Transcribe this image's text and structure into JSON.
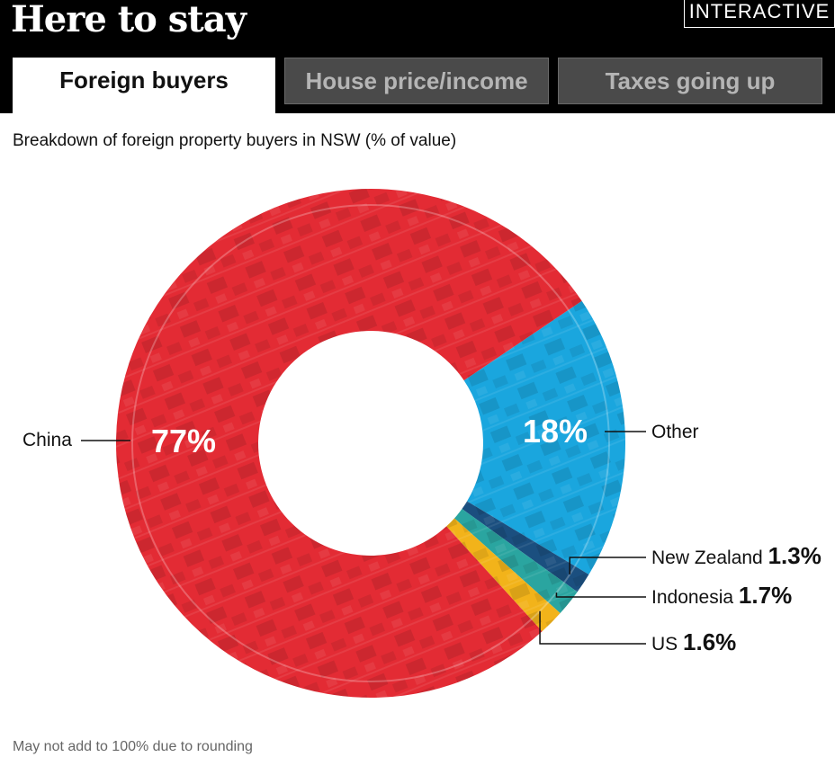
{
  "header": {
    "title": "Here to stay",
    "badge": "INTERACTIVE",
    "tabs": [
      {
        "label": "Foreign buyers",
        "active": true
      },
      {
        "label": "House price/income",
        "active": false
      },
      {
        "label": "Taxes going up",
        "active": false
      }
    ]
  },
  "subtitle": "Breakdown of foreign property buyers in NSW (% of value)",
  "footnote": "May not add to 100% due to rounding",
  "chart_data": {
    "type": "pie",
    "title": "Breakdown of foreign property buyers in NSW (% of value)",
    "slices": [
      {
        "label": "China",
        "value": 77,
        "display": "77%",
        "color": "#e32b34"
      },
      {
        "label": "Other",
        "value": 18,
        "display": "18%",
        "color": "#1aa6de"
      },
      {
        "label": "New Zealand",
        "value": 1.3,
        "display": "1.3%",
        "color": "#1b4f7f"
      },
      {
        "label": "Indonesia",
        "value": 1.7,
        "display": "1.7%",
        "color": "#2aa5a0"
      },
      {
        "label": "US",
        "value": 1.6,
        "display": "1.6%",
        "color": "#f2b31a"
      }
    ]
  }
}
